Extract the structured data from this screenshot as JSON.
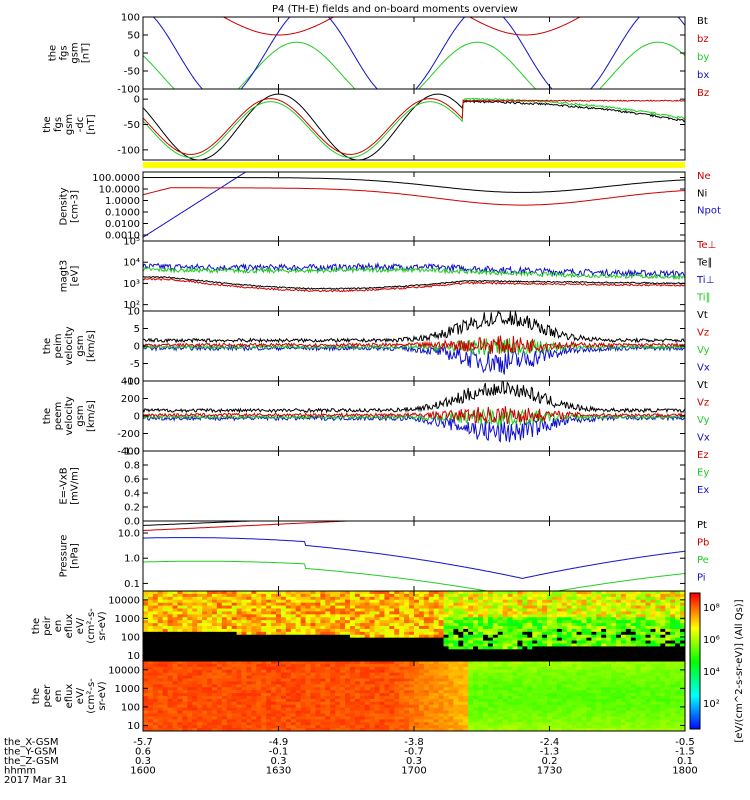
{
  "title": "P4 (TH-E) fields and on-board moments overview",
  "panels": [
    {
      "id": "fgs_gsm",
      "ylabel": [
        "the",
        "fgs",
        "gsm",
        "[nT]"
      ],
      "ylim": [
        -100,
        100
      ],
      "ticks": [
        "100",
        "50",
        "0",
        "-50",
        "-100"
      ],
      "tickvals": [
        100,
        50,
        0,
        -50,
        -100
      ],
      "log": false,
      "legend": [
        {
          "label": "Bt",
          "color": "#000000"
        },
        {
          "label": "bz",
          "color": "#cc0000"
        },
        {
          "label": "by",
          "color": "#22cc22"
        },
        {
          "label": "bx",
          "color": "#1111cc"
        }
      ]
    },
    {
      "id": "fgs_gsm_dc",
      "ylabel": [
        "the",
        "fgs",
        "gsm",
        "-dc",
        "[nT]"
      ],
      "ylim": [
        -120,
        20
      ],
      "ticks": [
        "0",
        "-50",
        "-100"
      ],
      "tickvals": [
        0,
        -50,
        -100
      ],
      "log": false,
      "legend": [
        {
          "label": "Bz",
          "color": "#cc0000"
        }
      ]
    },
    {
      "id": "density",
      "ylabel": [
        "Density",
        "[cm-3]"
      ],
      "ylim": [
        0.0003,
        300
      ],
      "ticks": [
        "100.0000",
        "10.0000",
        "1.0000",
        "0.1000",
        "0.0100",
        "0.0010"
      ],
      "tickvals": [
        100,
        10,
        1,
        0.1,
        0.01,
        0.001
      ],
      "log": true,
      "legend": [
        {
          "label": "Ne",
          "color": "#cc0000"
        },
        {
          "label": "Ni",
          "color": "#000000"
        },
        {
          "label": "Npot",
          "color": "#1111cc"
        }
      ]
    },
    {
      "id": "temperature",
      "ylabel": [
        "magt3",
        "[eV]"
      ],
      "ylim": [
        50,
        100000
      ],
      "ticks": [
        "10⁵",
        "10⁴",
        "10³",
        "10²"
      ],
      "tickvals": [
        100000,
        10000,
        1000,
        100
      ],
      "log": true,
      "legend": [
        {
          "label": "Te⊥",
          "color": "#cc0000"
        },
        {
          "label": "Te∥",
          "color": "#000000"
        },
        {
          "label": "Ti⊥",
          "color": "#1111cc"
        },
        {
          "label": "Ti∥",
          "color": "#22cc22"
        }
      ]
    },
    {
      "id": "peim_velocity",
      "ylabel": [
        "the",
        "peim",
        "velocity",
        "gsm",
        "[km/s]"
      ],
      "ylim": [
        -10,
        10
      ],
      "ticks": [
        "10",
        "5",
        "0",
        "-5",
        "-10"
      ],
      "tickvals": [
        10,
        5,
        0,
        -5,
        -10
      ],
      "log": false,
      "legend": [
        {
          "label": "Vt",
          "color": "#000000"
        },
        {
          "label": "Vz",
          "color": "#cc0000"
        },
        {
          "label": "Vy",
          "color": "#22cc22"
        },
        {
          "label": "Vx",
          "color": "#1111cc"
        }
      ]
    },
    {
      "id": "peem_velocity",
      "ylabel": [
        "the",
        "peem",
        "velocity",
        "gsm",
        "[km/s]"
      ],
      "ylim": [
        -400,
        400
      ],
      "ticks": [
        "400",
        "200",
        "0",
        "-200",
        "-400"
      ],
      "tickvals": [
        400,
        200,
        0,
        -200,
        -400
      ],
      "log": false,
      "legend": [
        {
          "label": "Vt",
          "color": "#000000"
        },
        {
          "label": "Vz",
          "color": "#cc0000"
        },
        {
          "label": "Vy",
          "color": "#22cc22"
        },
        {
          "label": "Vx",
          "color": "#1111cc"
        }
      ]
    },
    {
      "id": "efield",
      "ylabel": [
        "E=-VxB",
        "[mV/m]"
      ],
      "ylim": [
        0,
        1
      ],
      "ticks": [
        "1.0",
        "0.8",
        "0.6",
        "0.4",
        "0.2",
        "0.0"
      ],
      "tickvals": [
        1,
        0.8,
        0.6,
        0.4,
        0.2,
        0
      ],
      "log": false,
      "legend": [
        {
          "label": "Ez",
          "color": "#cc0000"
        },
        {
          "label": "Ey",
          "color": "#22cc22"
        },
        {
          "label": "Ex",
          "color": "#1111cc"
        }
      ]
    },
    {
      "id": "pressure",
      "ylabel": [
        "Pressure",
        "[nPa]"
      ],
      "ylim": [
        0.05,
        30
      ],
      "ticks": [
        "10.0",
        "1.0",
        "0.1"
      ],
      "tickvals": [
        10,
        1,
        0.1
      ],
      "log": true,
      "legend": [
        {
          "label": "Pt",
          "color": "#000000"
        },
        {
          "label": "Pb",
          "color": "#cc0000"
        },
        {
          "label": "Pe",
          "color": "#22cc22"
        },
        {
          "label": "Pi",
          "color": "#1111cc"
        }
      ]
    },
    {
      "id": "peir_eflux",
      "ylabel": [
        "the",
        "peir",
        "en",
        "eflux",
        "eV/",
        "(cm²-s-",
        "sr-eV)"
      ],
      "ylim": [
        5,
        30000
      ],
      "ticks": [
        "10000",
        "1000",
        "100",
        "10"
      ],
      "tickvals": [
        10000,
        1000,
        100,
        10
      ],
      "log": true,
      "legend": []
    },
    {
      "id": "peer_eflux",
      "ylabel": [
        "the",
        "peer",
        "en",
        "eflux",
        "eV/",
        "(cm²-s-",
        "sr-eV)"
      ],
      "ylim": [
        5,
        30000
      ],
      "ticks": [
        "10000",
        "1000",
        "100",
        "10"
      ],
      "tickvals": [
        10000,
        1000,
        100,
        10
      ],
      "log": true,
      "legend": []
    }
  ],
  "colorbar": {
    "ticks": [
      "10⁸",
      "10⁶",
      "10⁴",
      "10²"
    ],
    "label": "[eV/(cm^2-s-sr-eV)] (All Qs)]"
  },
  "xaxis": {
    "rows": [
      {
        "label": "the_X-GSM",
        "values": [
          "-5.7",
          "-4.9",
          "-3.8",
          "-2.4",
          "-0.5"
        ]
      },
      {
        "label": "the_Y-GSM",
        "values": [
          "0.6",
          "-0.1",
          "-0.7",
          "-1.3",
          "-1.5"
        ]
      },
      {
        "label": "the_Z-GSM",
        "values": [
          "0.3",
          "0.3",
          "0.3",
          "0.2",
          "0.1"
        ]
      },
      {
        "label": "hhmm",
        "values": [
          "1600",
          "1630",
          "1700",
          "1730",
          "1800"
        ]
      }
    ],
    "date": "2017 Mar 31"
  },
  "chart_data": {
    "type": "line",
    "title": "P4 (TH-E) fields and on-board moments overview",
    "x_label": "hhmm",
    "x_ticks": [
      "1600",
      "1630",
      "1700",
      "1730",
      "1800"
    ],
    "x_range": [
      "16:00",
      "18:00"
    ],
    "series_overview": [
      {
        "panel": "fgs_gsm",
        "name": "bx",
        "approx": "oscillating between -100 and 100 nT, 1600-1800"
      },
      {
        "panel": "density",
        "name": "Ni",
        "values_at_ticks": [
          70,
          90,
          20,
          3,
          80
        ]
      },
      {
        "panel": "density",
        "name": "Ne",
        "values_at_ticks": [
          8,
          13,
          8,
          0.4,
          2
        ]
      },
      {
        "panel": "pressure",
        "name": "Pi",
        "values_at_ticks": [
          5,
          10,
          3,
          0.15,
          5
        ]
      },
      {
        "panel": "pressure",
        "name": "Pe",
        "values_at_ticks": [
          0.7,
          1.5,
          0.6,
          0.03,
          0.3
        ]
      },
      {
        "panel": "temperature",
        "name": "Ti⊥",
        "values_at_ticks": [
          5000,
          5000,
          8000,
          4000,
          2500
        ]
      }
    ]
  }
}
